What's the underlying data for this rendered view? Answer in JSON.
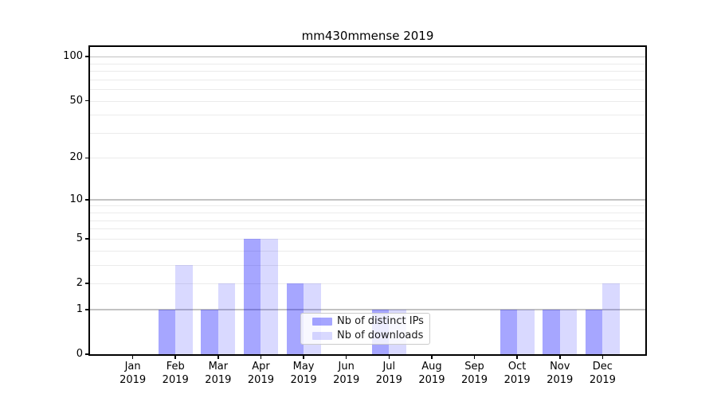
{
  "chart_data": {
    "type": "bar",
    "title": "mm430mmense 2019",
    "categories": [
      "Jan",
      "Feb",
      "Mar",
      "Apr",
      "May",
      "Jun",
      "Jul",
      "Aug",
      "Sep",
      "Oct",
      "Nov",
      "Dec"
    ],
    "category_year": "2019",
    "series": [
      {
        "name": "Nb of distinct IPs",
        "color": "rgba(0,0,255,0.35)",
        "values": [
          0,
          1,
          1,
          5,
          2,
          0,
          1,
          0,
          0,
          1,
          1,
          1
        ]
      },
      {
        "name": "Nb of downloads",
        "color": "rgba(0,0,255,0.15)",
        "values": [
          0,
          3,
          2,
          5,
          2,
          0,
          1,
          0,
          0,
          1,
          1,
          2
        ]
      }
    ],
    "y_axis": {
      "scale": "log1p",
      "tick_values": [
        0,
        1,
        2,
        5,
        10,
        20,
        50,
        100
      ],
      "decade_gridlines": [
        1,
        10,
        100
      ],
      "minor_gridlines": [
        2,
        3,
        4,
        5,
        6,
        7,
        8,
        9,
        20,
        30,
        40,
        50,
        60,
        70,
        80,
        90
      ],
      "ylim": [
        0,
        115
      ]
    },
    "xlabel": "",
    "ylabel": "",
    "grid": "on",
    "legend_position": "lower center"
  }
}
